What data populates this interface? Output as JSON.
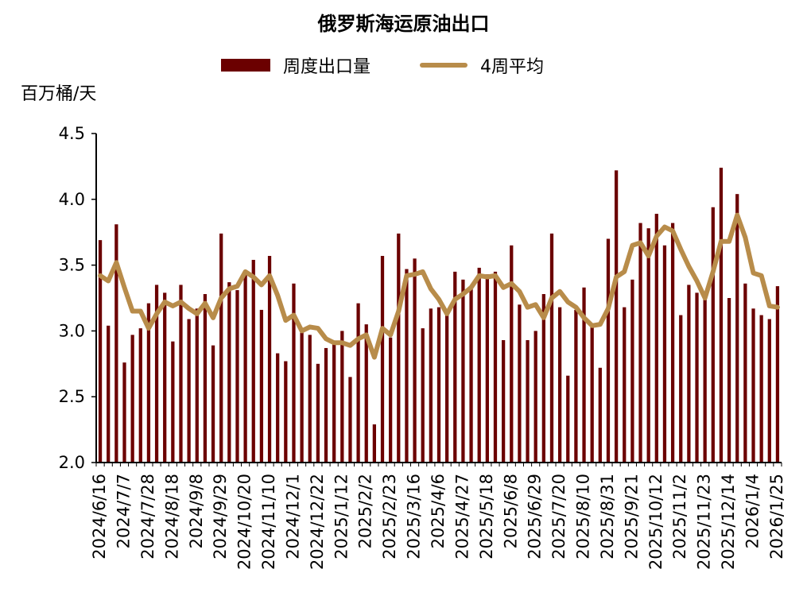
{
  "chart_data": {
    "type": "bar",
    "title": "俄罗斯海运原油出口",
    "ylabel": "百万桶/天",
    "xlabel": "",
    "ylim": [
      2.0,
      4.5
    ],
    "yticks": [
      "2.0",
      "2.5",
      "3.0",
      "3.5",
      "4.0",
      "4.5"
    ],
    "grid": false,
    "legend_position": "top",
    "x_tick_labels": [
      "2024/6/16",
      "2024/7/7",
      "2024/7/28",
      "2024/8/18",
      "2024/9/8",
      "2024/9/29",
      "2024/10/20",
      "2024/11/10",
      "2024/12/1",
      "2024/12/22",
      "2025/1/12",
      "2025/2/2",
      "2025/2/23",
      "2025/3/16",
      "2025/4/6",
      "2025/4/27",
      "2025/5/18",
      "2025/6/8",
      "2025/6/29",
      "2025/7/20",
      "2025/8/10",
      "2025/8/31",
      "2025/9/21",
      "2025/10/12",
      "2025/11/2",
      "2025/11/23",
      "2025/12/14",
      "2026/1/4",
      "2026/1/25"
    ],
    "label_every": 3,
    "series": [
      {
        "name": "周度出口量",
        "type": "bar",
        "color": "#6b0000",
        "values": [
          3.69,
          3.04,
          3.81,
          2.76,
          2.97,
          3.02,
          3.21,
          3.35,
          3.29,
          2.92,
          3.35,
          3.09,
          3.17,
          3.28,
          2.89,
          3.74,
          3.37,
          3.31,
          3.46,
          3.54,
          3.16,
          3.57,
          2.83,
          2.77,
          3.36,
          3.02,
          2.97,
          2.75,
          2.87,
          2.9,
          3.0,
          2.65,
          3.21,
          3.05,
          2.29,
          3.57,
          2.95,
          3.74,
          3.47,
          3.55,
          3.02,
          3.17,
          3.18,
          3.12,
          3.45,
          3.39,
          3.32,
          3.48,
          3.43,
          3.45,
          2.93,
          3.65,
          3.2,
          2.93,
          3.0,
          3.28,
          3.74,
          3.18,
          2.66,
          3.16,
          3.33,
          3.05,
          2.72,
          3.7,
          4.22,
          3.18,
          3.39,
          3.82,
          3.78,
          3.89,
          3.65,
          3.82,
          3.12,
          3.35,
          3.29,
          3.28,
          3.94,
          4.24,
          3.25,
          4.04,
          3.36,
          3.17,
          3.12,
          3.09,
          3.34
        ]
      },
      {
        "name": "4周平均",
        "type": "line",
        "color": "#b88c4a",
        "values": [
          3.42,
          3.38,
          3.52,
          3.33,
          3.15,
          3.15,
          3.02,
          3.13,
          3.22,
          3.19,
          3.22,
          3.17,
          3.13,
          3.21,
          3.1,
          3.25,
          3.32,
          3.34,
          3.45,
          3.41,
          3.35,
          3.42,
          3.27,
          3.08,
          3.12,
          3.0,
          3.03,
          3.02,
          2.94,
          2.91,
          2.91,
          2.89,
          2.94,
          2.97,
          2.8,
          3.02,
          2.97,
          3.15,
          3.42,
          3.43,
          3.45,
          3.32,
          3.24,
          3.13,
          3.24,
          3.28,
          3.33,
          3.42,
          3.41,
          3.42,
          3.33,
          3.36,
          3.3,
          3.18,
          3.2,
          3.1,
          3.25,
          3.3,
          3.22,
          3.18,
          3.1,
          3.04,
          3.05,
          3.17,
          3.41,
          3.45,
          3.65,
          3.67,
          3.57,
          3.72,
          3.79,
          3.76,
          3.62,
          3.49,
          3.38,
          3.25,
          3.45,
          3.68,
          3.68,
          3.88,
          3.71,
          3.44,
          3.42,
          3.19,
          3.18
        ]
      }
    ]
  },
  "colors": {
    "bar": "#6b0000",
    "line": "#b88c4a",
    "axis": "#000000"
  }
}
